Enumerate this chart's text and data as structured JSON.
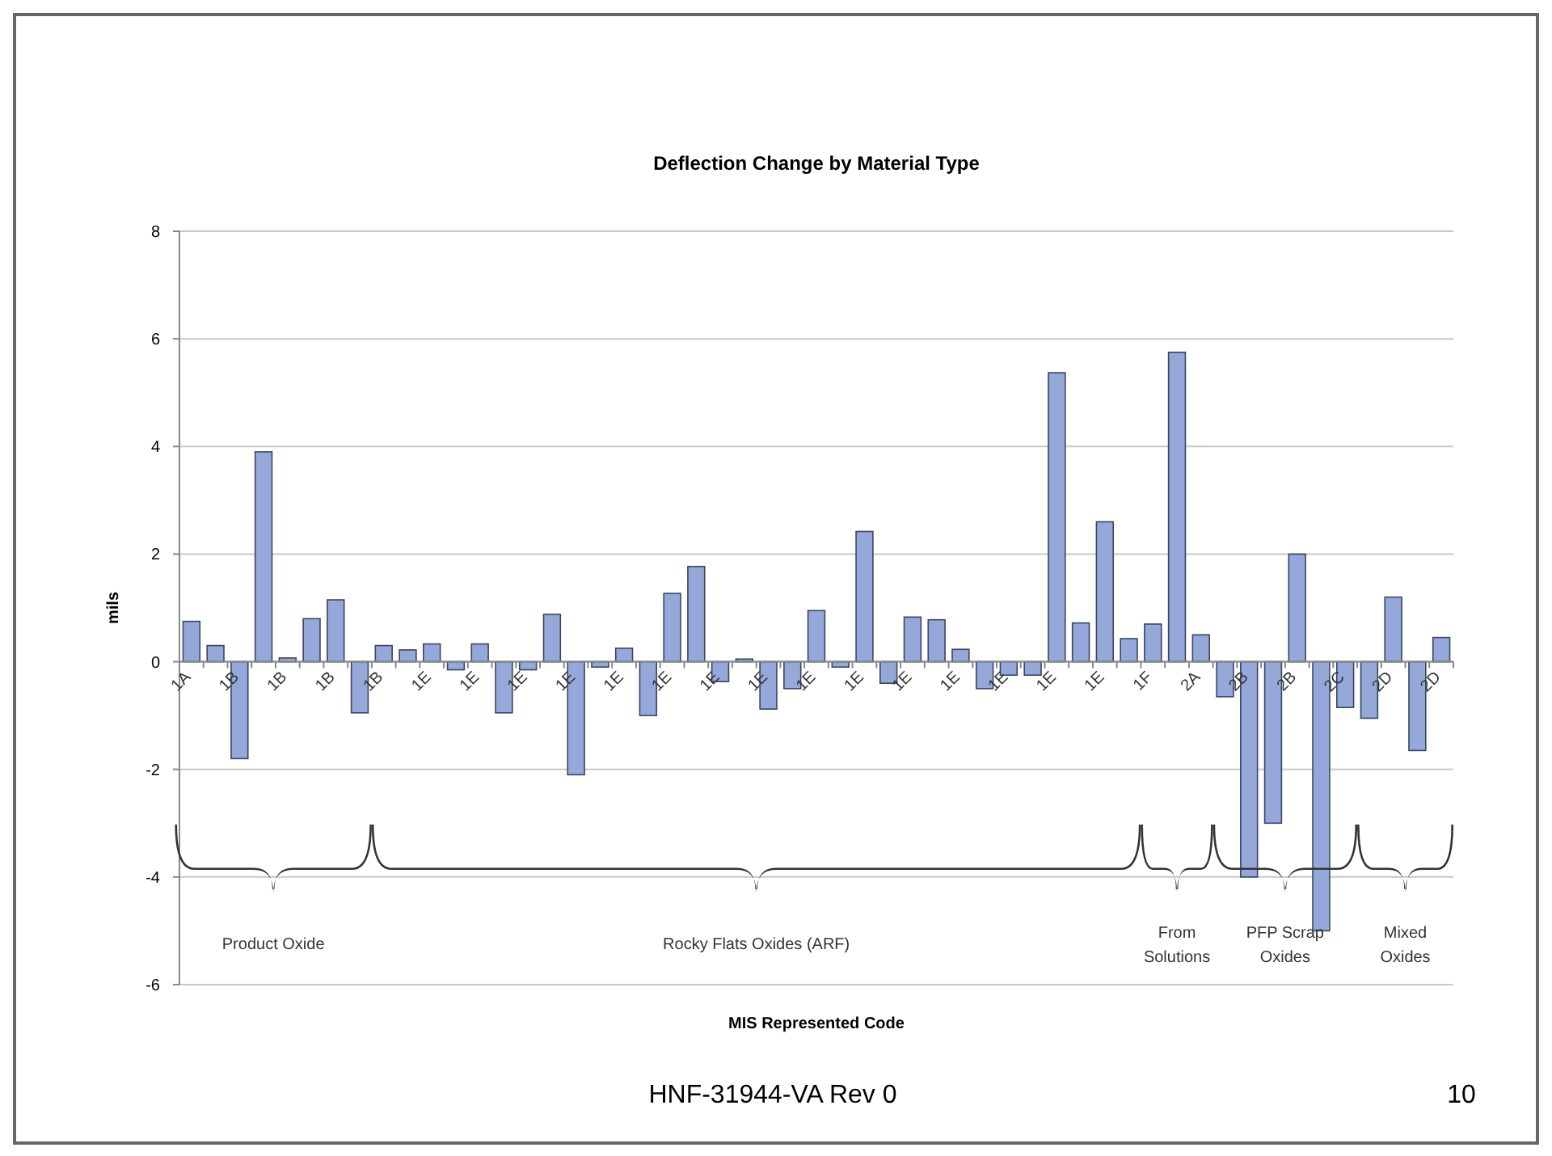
{
  "chart_data": {
    "type": "bar",
    "title": "Deflection Change by Material Type",
    "xlabel": "MIS Represented Code",
    "ylabel": "mils",
    "categories": [
      "1A",
      null,
      "1B",
      null,
      "1B",
      null,
      "1B",
      null,
      "1B",
      null,
      "1E",
      null,
      "1E",
      null,
      "1E",
      null,
      "1E",
      null,
      "1E",
      null,
      "1E",
      null,
      "1E",
      null,
      "1E",
      null,
      "1E",
      null,
      "1E",
      null,
      "1E",
      null,
      "1E",
      null,
      "1E",
      null,
      "1E",
      null,
      "1E",
      null,
      "1F",
      null,
      "2A",
      null,
      "2B",
      null,
      "2B",
      null,
      "2C",
      null,
      "2D",
      null,
      "2D"
    ],
    "values": [
      0.75,
      0.3,
      -1.8,
      3.9,
      0.07,
      0.8,
      1.15,
      -0.95,
      0.3,
      0.22,
      0.33,
      -0.15,
      0.33,
      -0.95,
      -0.15,
      0.88,
      -2.1,
      -0.1,
      0.25,
      -1.0,
      1.27,
      1.77,
      -0.37,
      0.05,
      -0.88,
      -0.5,
      0.95,
      -0.1,
      2.42,
      -0.4,
      0.83,
      0.78,
      0.23,
      -0.5,
      -0.25,
      -0.25,
      5.37,
      0.72,
      2.6,
      0.43,
      0.7,
      5.75,
      0.5,
      -0.65,
      -4.0,
      -3.0,
      2.0,
      -5.0,
      -0.85,
      -1.05,
      1.2,
      -1.65,
      0.45
    ],
    "color": "#94a9d9",
    "ylim": [
      -6,
      8
    ],
    "yticks": [
      -6,
      -4,
      -2,
      0,
      2,
      4,
      6,
      8
    ],
    "grid": "y",
    "annotations": [
      "Product Oxide",
      "Rocky Flats Oxides (ARF)",
      "From Solutions",
      "PFP Scrap Oxides",
      "Mixed Oxides",
      "HNF-31944-VA Rev 0",
      "10"
    ]
  }
}
